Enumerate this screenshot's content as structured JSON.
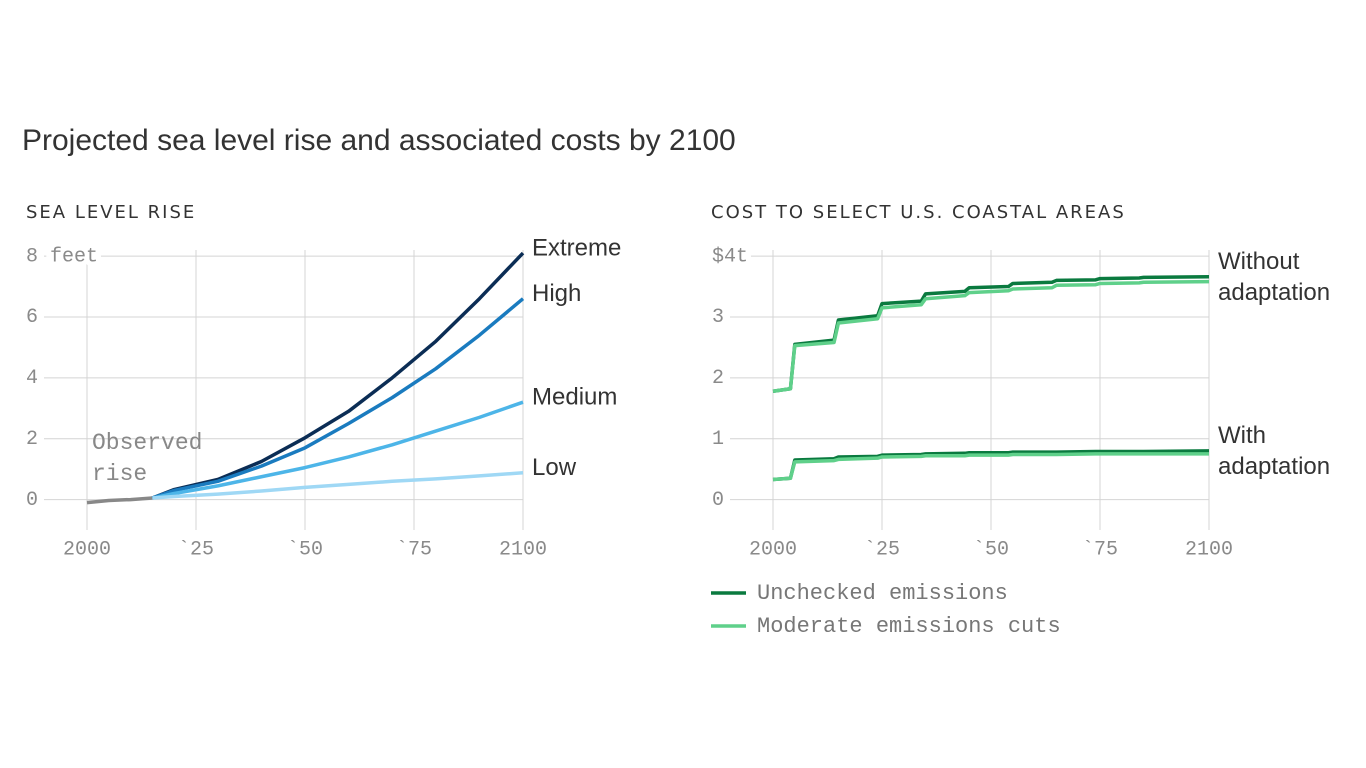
{
  "title": "Projected sea level rise and associated costs by 2100",
  "chart_data": [
    {
      "type": "line",
      "subtitle": "SEA LEVEL RISE",
      "xlim": [
        2000,
        2100
      ],
      "xticks": [
        2000,
        {
          "value": 2025,
          "label": "`25"
        },
        {
          "value": 2050,
          "label": "`50"
        },
        {
          "value": 2075,
          "label": "`75"
        },
        2100
      ],
      "ylim": [
        -1,
        8.2
      ],
      "yticks": [
        {
          "value": 8,
          "label": "8 feet"
        },
        6,
        4,
        2,
        0
      ],
      "grid": true,
      "series": [
        {
          "name": "Observed rise",
          "color": "#888888",
          "label_at": "above",
          "x": [
            2000,
            2005,
            2010,
            2015
          ],
          "values": [
            -0.1,
            -0.03,
            0.0,
            0.05
          ]
        },
        {
          "name": "Extreme",
          "color": "#0b2d55",
          "label_at": "end",
          "x": [
            2015,
            2020,
            2030,
            2040,
            2050,
            2060,
            2070,
            2080,
            2090,
            2100
          ],
          "values": [
            0.05,
            0.33,
            0.66,
            1.25,
            2.03,
            2.9,
            4.0,
            5.2,
            6.6,
            8.1
          ]
        },
        {
          "name": "High",
          "color": "#1a7bbf",
          "label_at": "end",
          "x": [
            2015,
            2020,
            2030,
            2040,
            2050,
            2060,
            2070,
            2080,
            2090,
            2100
          ],
          "values": [
            0.05,
            0.3,
            0.6,
            1.1,
            1.7,
            2.5,
            3.35,
            4.3,
            5.4,
            6.6
          ]
        },
        {
          "name": "Medium",
          "color": "#4db5e8",
          "label_at": "end",
          "x": [
            2015,
            2020,
            2030,
            2040,
            2050,
            2060,
            2070,
            2080,
            2090,
            2100
          ],
          "values": [
            0.05,
            0.2,
            0.45,
            0.75,
            1.05,
            1.4,
            1.8,
            2.25,
            2.7,
            3.2
          ]
        },
        {
          "name": "Low",
          "color": "#9fd8f5",
          "label_at": "end",
          "x": [
            2015,
            2020,
            2030,
            2040,
            2050,
            2060,
            2070,
            2080,
            2090,
            2100
          ],
          "values": [
            0.05,
            0.1,
            0.18,
            0.28,
            0.4,
            0.5,
            0.6,
            0.68,
            0.78,
            0.88
          ]
        }
      ]
    },
    {
      "type": "line",
      "subtitle": "COST TO SELECT U.S. COASTAL AREAS",
      "xlim": [
        2000,
        2100
      ],
      "xticks": [
        2000,
        {
          "value": 2025,
          "label": "`25"
        },
        {
          "value": 2050,
          "label": "`50"
        },
        {
          "value": 2075,
          "label": "`75"
        },
        2100
      ],
      "ylim": [
        -0.5,
        4.1
      ],
      "yticks": [
        {
          "value": 4,
          "label": "$4t"
        },
        3,
        2,
        1,
        0
      ],
      "grid": true,
      "legend": "bottom",
      "line_labels": [
        "Without adaptation",
        "With adaptation"
      ],
      "x": [
        2000,
        2004,
        2005,
        2014,
        2015,
        2024,
        2025,
        2034,
        2035,
        2044,
        2045,
        2054,
        2055,
        2064,
        2065,
        2074,
        2075,
        2084,
        2085,
        2100
      ],
      "series": [
        {
          "name": "Unchecked emissions",
          "color": "#0a7a3f",
          "values": [
            [
              1.78,
              1.82,
              2.55,
              2.62,
              2.95,
              3.02,
              3.22,
              3.26,
              3.38,
              3.42,
              3.48,
              3.5,
              3.55,
              3.57,
              3.6,
              3.61,
              3.63,
              3.64,
              3.65,
              3.66
            ],
            [
              0.33,
              0.35,
              0.65,
              0.67,
              0.7,
              0.71,
              0.73,
              0.74,
              0.75,
              0.76,
              0.77,
              0.77,
              0.78,
              0.78,
              0.78,
              0.79,
              0.79,
              0.79,
              0.79,
              0.8
            ]
          ]
        },
        {
          "name": "Moderate emissions cuts",
          "color": "#5fd08a",
          "values": [
            [
              1.78,
              1.82,
              2.53,
              2.58,
              2.9,
              2.97,
              3.15,
              3.2,
              3.3,
              3.35,
              3.4,
              3.43,
              3.46,
              3.48,
              3.52,
              3.53,
              3.55,
              3.56,
              3.57,
              3.58
            ],
            [
              0.33,
              0.35,
              0.62,
              0.64,
              0.66,
              0.68,
              0.7,
              0.71,
              0.72,
              0.72,
              0.73,
              0.73,
              0.74,
              0.74,
              0.74,
              0.75,
              0.75,
              0.75,
              0.75,
              0.75
            ]
          ]
        }
      ]
    }
  ]
}
